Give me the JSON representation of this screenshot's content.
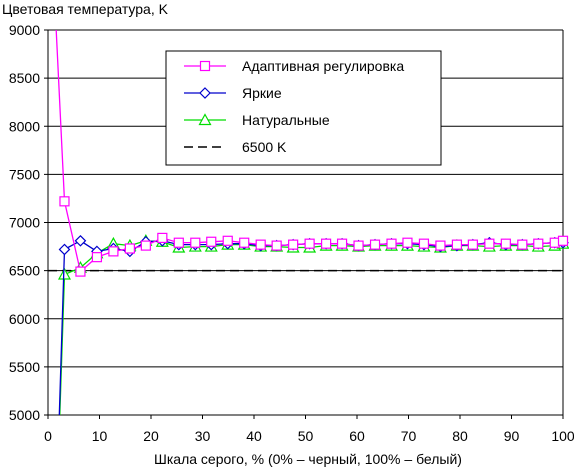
{
  "chart_data": {
    "type": "line",
    "title": "Цветовая температура, K",
    "xlabel": "Шкала серого, % (0% – черный, 100% – белый)",
    "ylabel": "",
    "xlim": [
      0,
      100
    ],
    "ylim": [
      5000,
      9000
    ],
    "x_ticks": [
      0,
      10,
      20,
      30,
      40,
      50,
      60,
      70,
      80,
      90,
      100
    ],
    "y_ticks": [
      5000,
      5500,
      6000,
      6500,
      7000,
      7500,
      8000,
      8500,
      9000
    ],
    "grid": "horizontal",
    "legend_position": "top-right",
    "series": [
      {
        "name": "Адаптивная регулировка",
        "color": "#ff00ff",
        "marker": "square",
        "points": [
          [
            1.6,
            9000
          ],
          [
            3.2,
            7220
          ],
          [
            6.3,
            6490
          ],
          [
            9.5,
            6640
          ],
          [
            12.7,
            6700
          ],
          [
            15.9,
            6730
          ],
          [
            19,
            6760
          ],
          [
            22.2,
            6840
          ],
          [
            25.4,
            6790
          ],
          [
            28.6,
            6790
          ],
          [
            31.7,
            6800
          ],
          [
            34.9,
            6810
          ],
          [
            38.1,
            6790
          ],
          [
            41.3,
            6770
          ],
          [
            44.4,
            6760
          ],
          [
            47.6,
            6770
          ],
          [
            50.8,
            6780
          ],
          [
            54,
            6780
          ],
          [
            57.1,
            6780
          ],
          [
            60.3,
            6760
          ],
          [
            63.5,
            6770
          ],
          [
            66.7,
            6780
          ],
          [
            69.8,
            6790
          ],
          [
            73,
            6780
          ],
          [
            76.2,
            6760
          ],
          [
            79.4,
            6770
          ],
          [
            82.5,
            6770
          ],
          [
            85.7,
            6780
          ],
          [
            88.9,
            6780
          ],
          [
            92.1,
            6770
          ],
          [
            95.2,
            6780
          ],
          [
            98.4,
            6790
          ],
          [
            100,
            6810
          ]
        ]
      },
      {
        "name": "Яркие",
        "color": "#0000cc",
        "marker": "diamond",
        "points": [
          [
            2.2,
            5000
          ],
          [
            3.2,
            6720
          ],
          [
            6.3,
            6810
          ],
          [
            9.5,
            6700
          ],
          [
            12.7,
            6730
          ],
          [
            15.9,
            6700
          ],
          [
            19,
            6800
          ],
          [
            22.2,
            6810
          ],
          [
            25.4,
            6770
          ],
          [
            28.6,
            6770
          ],
          [
            31.7,
            6770
          ],
          [
            34.9,
            6780
          ],
          [
            38.1,
            6780
          ],
          [
            41.3,
            6760
          ],
          [
            44.4,
            6760
          ],
          [
            47.6,
            6770
          ],
          [
            50.8,
            6780
          ],
          [
            54,
            6780
          ],
          [
            57.1,
            6780
          ],
          [
            60.3,
            6760
          ],
          [
            63.5,
            6770
          ],
          [
            66.7,
            6780
          ],
          [
            69.8,
            6780
          ],
          [
            73,
            6770
          ],
          [
            76.2,
            6750
          ],
          [
            79.4,
            6760
          ],
          [
            82.5,
            6770
          ],
          [
            85.7,
            6790
          ],
          [
            88.9,
            6770
          ],
          [
            92.1,
            6770
          ],
          [
            95.2,
            6780
          ],
          [
            98.4,
            6790
          ],
          [
            100,
            6790
          ]
        ]
      },
      {
        "name": "Натуральные",
        "color": "#00dd00",
        "marker": "triangle",
        "points": [
          [
            2.3,
            5000
          ],
          [
            3.2,
            6460
          ],
          [
            6.3,
            6530
          ],
          [
            9.5,
            6680
          ],
          [
            12.7,
            6780
          ],
          [
            15.9,
            6760
          ],
          [
            19,
            6810
          ],
          [
            22.2,
            6800
          ],
          [
            25.4,
            6740
          ],
          [
            28.6,
            6750
          ],
          [
            31.7,
            6750
          ],
          [
            34.9,
            6770
          ],
          [
            38.1,
            6770
          ],
          [
            41.3,
            6750
          ],
          [
            44.4,
            6750
          ],
          [
            47.6,
            6740
          ],
          [
            50.8,
            6740
          ],
          [
            54,
            6760
          ],
          [
            57.1,
            6760
          ],
          [
            60.3,
            6750
          ],
          [
            63.5,
            6760
          ],
          [
            66.7,
            6760
          ],
          [
            69.8,
            6760
          ],
          [
            73,
            6750
          ],
          [
            76.2,
            6740
          ],
          [
            79.4,
            6760
          ],
          [
            82.5,
            6760
          ],
          [
            85.7,
            6750
          ],
          [
            88.9,
            6760
          ],
          [
            92.1,
            6760
          ],
          [
            95.2,
            6750
          ],
          [
            98.4,
            6760
          ],
          [
            100,
            6780
          ]
        ]
      },
      {
        "name": "6500 K",
        "color": "#000000",
        "marker": "none",
        "dashed": true,
        "points": [
          [
            0,
            6500
          ],
          [
            100,
            6500
          ]
        ]
      }
    ]
  }
}
